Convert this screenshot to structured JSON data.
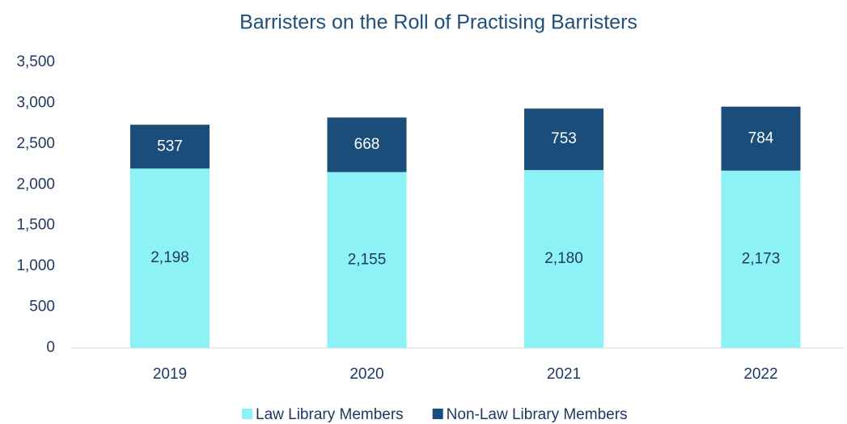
{
  "chart_data": {
    "type": "stacked_bar",
    "title": "Barristers on the Roll of Practising Barristers",
    "categories": [
      "2019",
      "2020",
      "2021",
      "2022"
    ],
    "series": [
      {
        "name": "Law Library Members",
        "color": "#8cf2f5",
        "values": [
          2198,
          2155,
          2180,
          2173
        ],
        "value_labels": [
          "2,198",
          "2,155",
          "2,180",
          "2,173"
        ]
      },
      {
        "name": "Non-Law Library Members",
        "color": "#1b4d7a",
        "values": [
          537,
          668,
          753,
          784
        ]
      }
    ],
    "ylim": [
      0,
      3500
    ],
    "yticks": [
      0,
      500,
      {
        "value": 1000,
        "label": "1,000"
      },
      {
        "value": 1500,
        "label": "1,500"
      },
      {
        "value": 2000,
        "label": "2,000"
      },
      {
        "value": 2500,
        "label": "2,500"
      },
      {
        "value": 3000,
        "label": "3,000"
      },
      {
        "value": 3500,
        "label": "3,500"
      }
    ],
    "grid": false,
    "legend": "bottom"
  }
}
